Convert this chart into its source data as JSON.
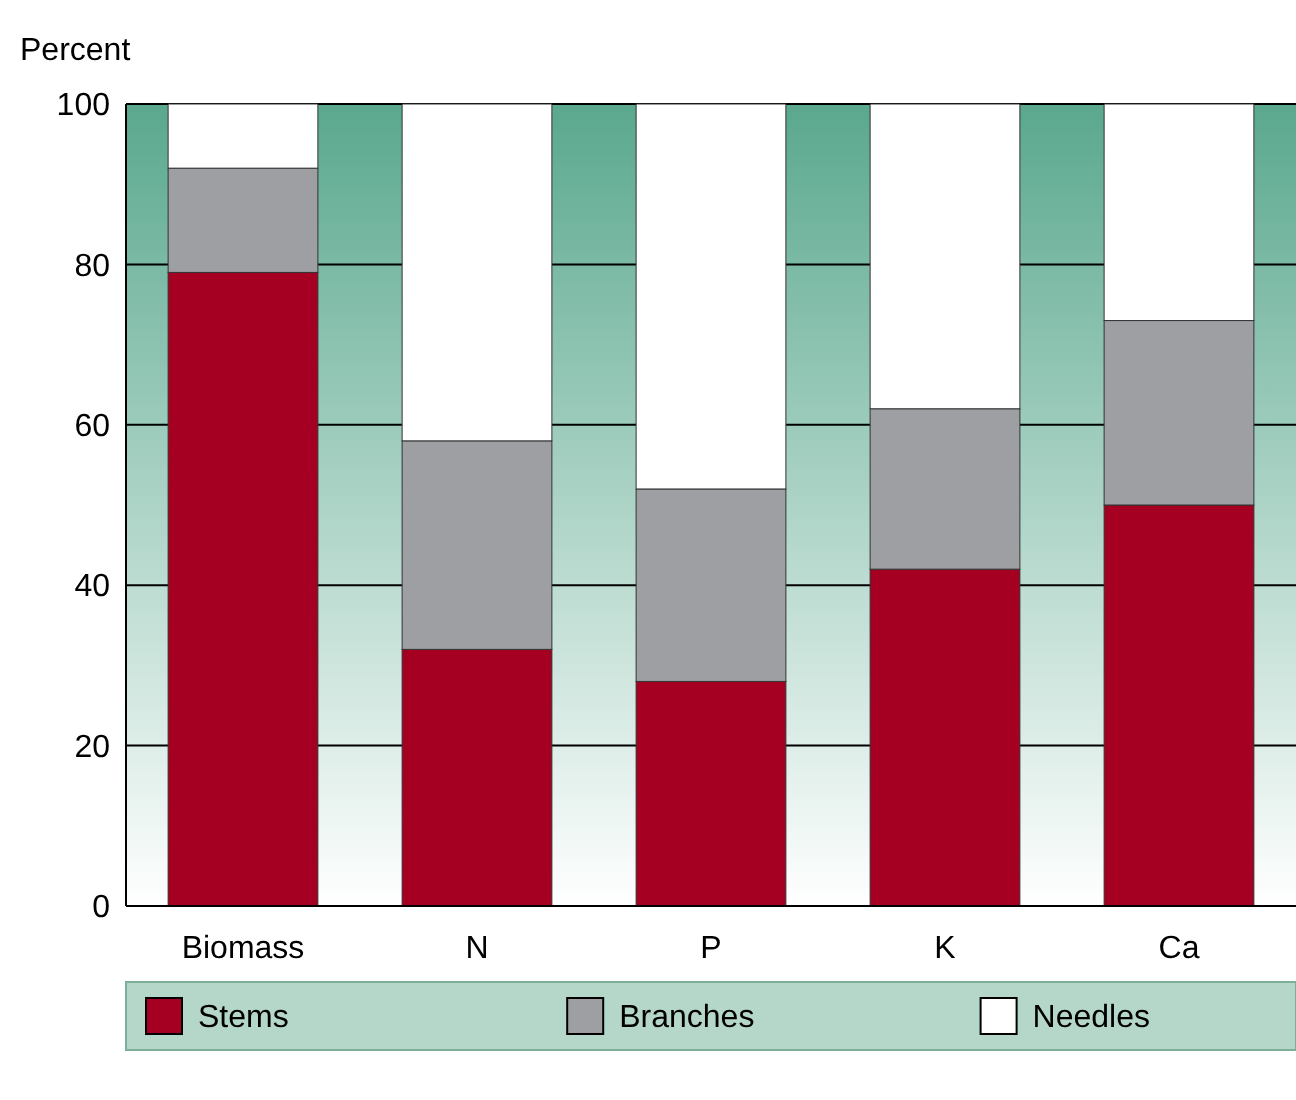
{
  "chart_data": {
    "type": "bar",
    "ylabel": "Percent",
    "categories": [
      "Biomass",
      "N",
      "P",
      "K",
      "Ca"
    ],
    "stacked": true,
    "ylim": [
      0,
      100
    ],
    "yticks": [
      0,
      20,
      40,
      60,
      80,
      100
    ],
    "grid": "y",
    "legend": "bottom",
    "series": [
      {
        "name": "Stems",
        "color": "#a50021",
        "values": [
          79,
          32,
          28,
          42,
          50
        ]
      },
      {
        "name": "Branches",
        "color": "#9d9fa2",
        "values": [
          13,
          26,
          24,
          20,
          23
        ]
      },
      {
        "name": "Needles",
        "color": "#ffffff",
        "values": [
          8,
          42,
          48,
          38,
          27
        ]
      }
    ]
  }
}
